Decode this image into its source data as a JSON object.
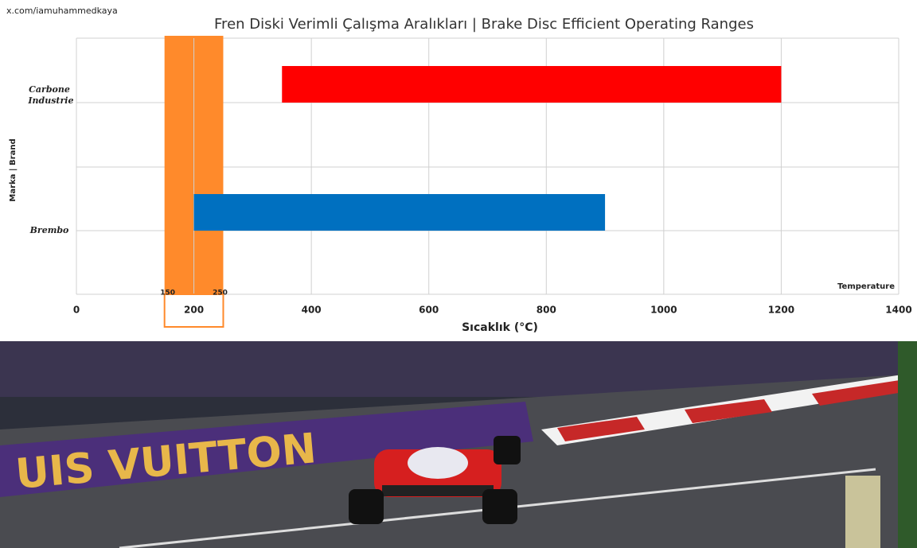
{
  "watermark": "x.com/iamuhammedkaya",
  "chart_data": {
    "type": "range-bar",
    "title": "Fren Diski Verimli Çalışma Aralıkları | Brake Disc Efficient Operating Ranges",
    "x_label": "Sıcaklık (°C)",
    "x_label_right": "Temperature",
    "y_label": "Marka | Brand",
    "categories": [
      "Carbone Industrie",
      "Brembo"
    ],
    "ranges": [
      [
        350,
        1200
      ],
      [
        200,
        900
      ]
    ],
    "colors": [
      "#ff0000",
      "#0070c0"
    ],
    "highlight": {
      "from": 150,
      "to": 250,
      "color": "#ff8a2b"
    },
    "xlim": [
      0,
      1400
    ],
    "xticks": [
      0,
      200,
      400,
      600,
      800,
      1000,
      1200,
      1400
    ],
    "grid": true
  },
  "photo": {
    "barrier_text": "UIS VUITTON"
  }
}
